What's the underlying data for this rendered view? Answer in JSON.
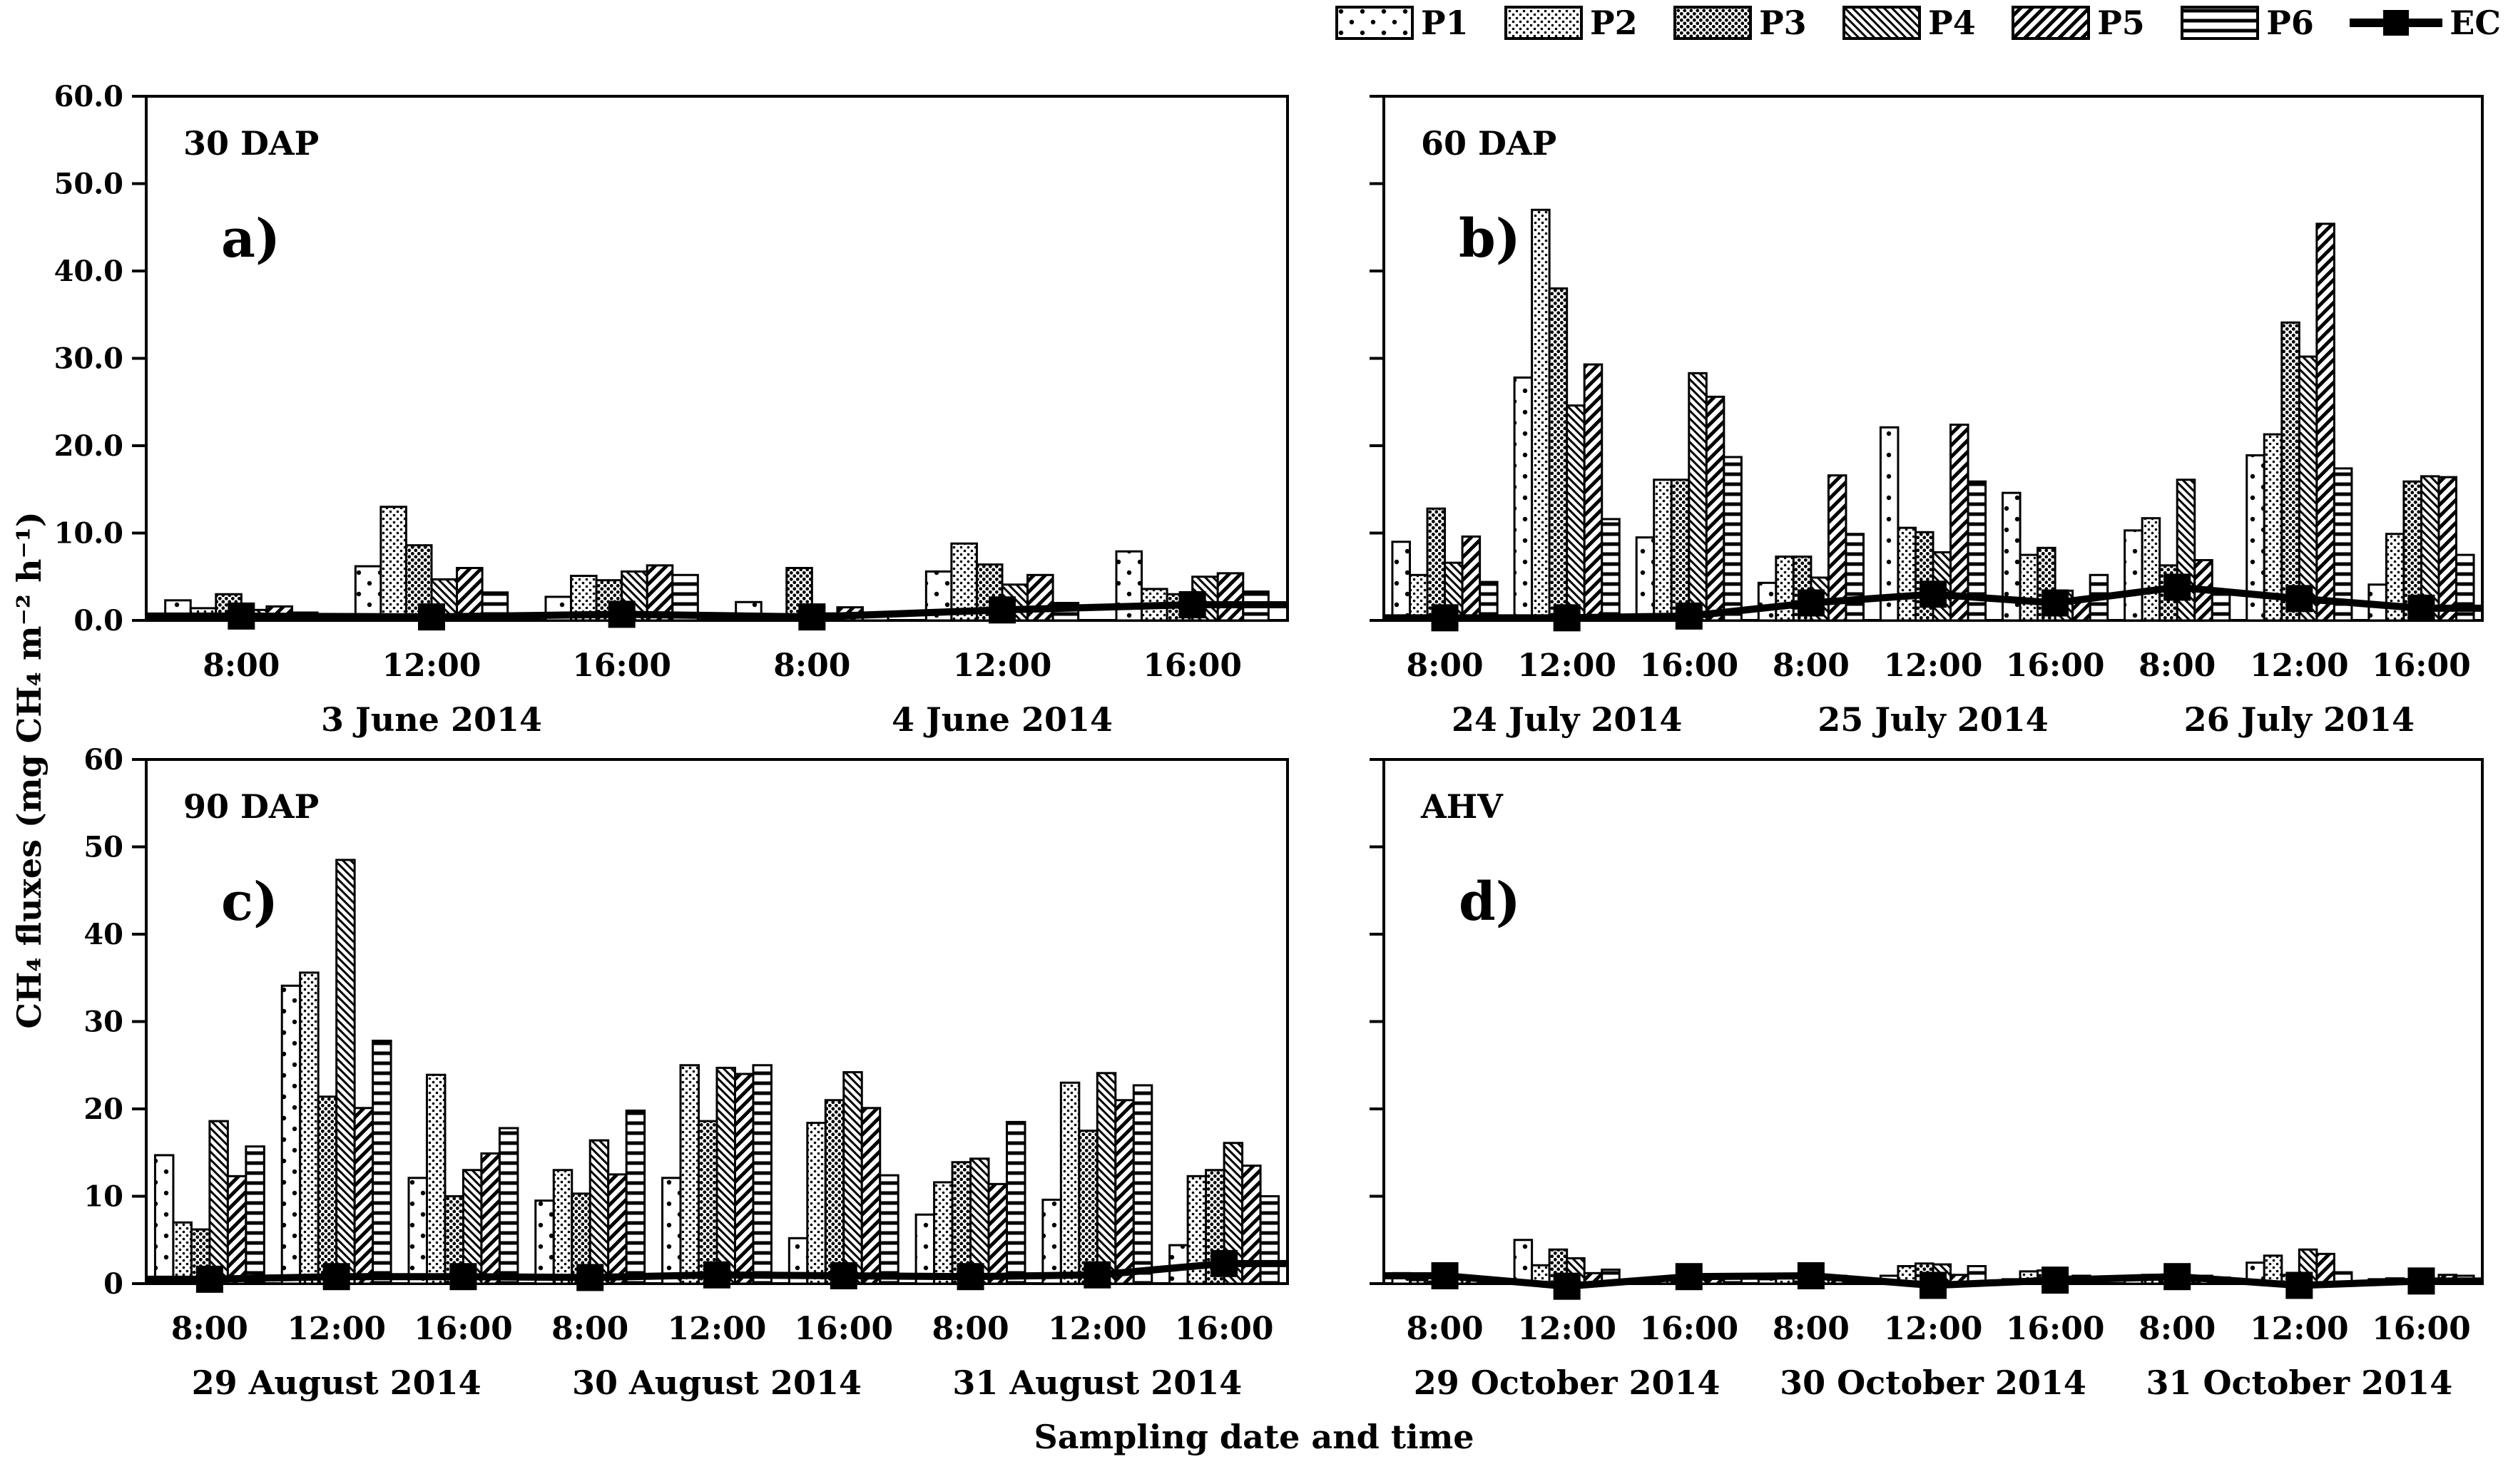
{
  "figure": {
    "y_axis_title": "CH₄ fluxes (mg CH₄ m⁻² h⁻¹)",
    "x_axis_title": "Sampling date and time"
  },
  "legend": {
    "items": [
      {
        "label": "P1",
        "pattern": "sparse-dots"
      },
      {
        "label": "P2",
        "pattern": "fine-dots"
      },
      {
        "label": "P3",
        "pattern": "dense-dots"
      },
      {
        "label": "P4",
        "pattern": "diagonal-backslash"
      },
      {
        "label": "P5",
        "pattern": "diagonal-slash"
      },
      {
        "label": "P6",
        "pattern": "horizontal-lines"
      },
      {
        "label": "EC",
        "pattern": "line-with-square-marker"
      }
    ]
  },
  "chart_data": {
    "type": "bar",
    "title": "",
    "ylabel": "CH₄ fluxes (mg CH₄ m⁻² h⁻¹)",
    "xlabel": "Sampling date and time",
    "series_names": [
      "P1",
      "P2",
      "P3",
      "P4",
      "P5",
      "P6"
    ],
    "ec_series_name": "EC",
    "accent_color": "#000000",
    "panels": [
      {
        "id": "a",
        "tag": "30 DAP",
        "letter": "a)",
        "ylim": [
          0,
          60
        ],
        "y_ticks": [
          0,
          10,
          20,
          30,
          40,
          50,
          60
        ],
        "y_tick_labels": [
          "0.0",
          "10.0",
          "20.0",
          "30.0",
          "40.0",
          "50.0",
          "60.0"
        ],
        "dates": [
          "3 June 2014",
          "4 June 2014"
        ],
        "groups": [
          {
            "time": "8:00",
            "date_index": 0,
            "values": [
              2.3,
              1.4,
              3.0,
              1.2,
              1.6,
              0.9
            ],
            "ec": 0.5
          },
          {
            "time": "12:00",
            "date_index": 0,
            "values": [
              6.2,
              13.0,
              8.6,
              4.7,
              6.0,
              3.2
            ],
            "ec": 0.4
          },
          {
            "time": "16:00",
            "date_index": 0,
            "values": [
              2.7,
              5.1,
              4.6,
              5.6,
              6.3,
              5.2
            ],
            "ec": 0.7
          },
          {
            "time": "8:00",
            "date_index": 1,
            "values": [
              2.1,
              0.6,
              6.0,
              0.8,
              1.5,
              0.9
            ],
            "ec": 0.4
          },
          {
            "time": "12:00",
            "date_index": 1,
            "values": [
              5.6,
              8.8,
              6.4,
              4.1,
              5.2,
              2.0
            ],
            "ec": 1.2
          },
          {
            "time": "16:00",
            "date_index": 1,
            "values": [
              7.9,
              3.6,
              3.0,
              5.0,
              5.4,
              3.3
            ],
            "ec": 1.8
          }
        ]
      },
      {
        "id": "b",
        "tag": "60 DAP",
        "letter": "b)",
        "ylim": [
          0,
          60
        ],
        "y_ticks": [
          0,
          10,
          20,
          30,
          40,
          50,
          60
        ],
        "y_tick_labels": [],
        "dates": [
          "24 July 2014",
          "25 July 2014",
          "26 July 2014"
        ],
        "groups": [
          {
            "time": "8:00",
            "date_index": 0,
            "values": [
              9.0,
              5.2,
              12.8,
              6.6,
              9.6,
              4.4
            ],
            "ec": 0.3
          },
          {
            "time": "12:00",
            "date_index": 0,
            "values": [
              27.8,
              47.0,
              38.0,
              24.6,
              29.3,
              11.6
            ],
            "ec": 0.3
          },
          {
            "time": "16:00",
            "date_index": 0,
            "values": [
              9.5,
              16.1,
              16.1,
              28.3,
              25.6,
              18.7
            ],
            "ec": 0.5
          },
          {
            "time": "8:00",
            "date_index": 1,
            "values": [
              4.3,
              7.3,
              7.3,
              4.9,
              16.6,
              9.9
            ],
            "ec": 2.0
          },
          {
            "time": "12:00",
            "date_index": 1,
            "values": [
              22.1,
              10.6,
              10.1,
              7.8,
              22.4,
              15.9
            ],
            "ec": 3.0
          },
          {
            "time": "16:00",
            "date_index": 1,
            "values": [
              14.6,
              7.5,
              8.3,
              3.4,
              2.4,
              5.2
            ],
            "ec": 2.0
          },
          {
            "time": "8:00",
            "date_index": 2,
            "values": [
              10.3,
              11.7,
              6.3,
              16.1,
              6.9,
              3.4
            ],
            "ec": 3.8
          },
          {
            "time": "12:00",
            "date_index": 2,
            "values": [
              18.9,
              21.3,
              34.1,
              30.2,
              45.4,
              17.4
            ],
            "ec": 2.5
          },
          {
            "time": "16:00",
            "date_index": 2,
            "values": [
              4.1,
              9.9,
              15.9,
              16.5,
              16.4,
              7.5
            ],
            "ec": 1.4
          }
        ]
      },
      {
        "id": "c",
        "tag": "90 DAP",
        "letter": "c)",
        "ylim": [
          0,
          60
        ],
        "y_ticks": [
          0,
          10,
          20,
          30,
          40,
          50,
          60
        ],
        "y_tick_labels": [
          "0",
          "10",
          "20",
          "30",
          "40",
          "50",
          "60"
        ],
        "dates": [
          "29 August 2014",
          "30 August 2014",
          "31 August 2014"
        ],
        "groups": [
          {
            "time": "8:00",
            "date_index": 0,
            "values": [
              14.7,
              7.0,
              6.2,
              18.6,
              12.3,
              15.7
            ],
            "ec": 0.5
          },
          {
            "time": "12:00",
            "date_index": 0,
            "values": [
              34.1,
              35.6,
              21.4,
              48.5,
              20.1,
              27.8
            ],
            "ec": 0.8
          },
          {
            "time": "16:00",
            "date_index": 0,
            "values": [
              12.1,
              23.9,
              10.0,
              13.0,
              14.9,
              17.8
            ],
            "ec": 0.8
          },
          {
            "time": "8:00",
            "date_index": 1,
            "values": [
              9.5,
              13.0,
              10.3,
              16.4,
              12.5,
              19.8
            ],
            "ec": 0.7
          },
          {
            "time": "12:00",
            "date_index": 1,
            "values": [
              12.1,
              25.0,
              18.6,
              24.7,
              24.0,
              25.0
            ],
            "ec": 1.0
          },
          {
            "time": "16:00",
            "date_index": 1,
            "values": [
              5.2,
              18.4,
              21.0,
              24.2,
              20.1,
              12.4
            ],
            "ec": 0.9
          },
          {
            "time": "8:00",
            "date_index": 2,
            "values": [
              7.9,
              11.6,
              13.9,
              14.3,
              11.4,
              18.5
            ],
            "ec": 0.8
          },
          {
            "time": "12:00",
            "date_index": 2,
            "values": [
              9.6,
              23.0,
              17.5,
              24.1,
              21.0,
              22.7
            ],
            "ec": 1.0
          },
          {
            "time": "16:00",
            "date_index": 2,
            "values": [
              4.4,
              12.3,
              13.0,
              16.1,
              13.5,
              10.0
            ],
            "ec": 2.3
          }
        ]
      },
      {
        "id": "d",
        "tag": "AHV",
        "letter": "d)",
        "ylim": [
          0,
          60
        ],
        "y_ticks": [
          0,
          10,
          20,
          30,
          40,
          50,
          60
        ],
        "y_tick_labels": [],
        "dates": [
          "29 October 2014",
          "30 October 2014",
          "31 October 2014"
        ],
        "groups": [
          {
            "time": "8:00",
            "date_index": 0,
            "values": [
              1.2,
              0.4,
              0.7,
              0.6,
              0.7,
              0.6
            ],
            "ec": 0.9
          },
          {
            "time": "12:00",
            "date_index": 0,
            "values": [
              5.0,
              2.1,
              3.9,
              2.9,
              1.2,
              1.6
            ],
            "ec": -0.3
          },
          {
            "time": "16:00",
            "date_index": 0,
            "values": [
              0.4,
              0.5,
              0.6,
              0.5,
              0.8,
              0.6
            ],
            "ec": 0.8
          },
          {
            "time": "8:00",
            "date_index": 1,
            "values": [
              0.5,
              0.6,
              0.8,
              0.6,
              0.9,
              0.7
            ],
            "ec": 0.9
          },
          {
            "time": "12:00",
            "date_index": 1,
            "values": [
              0.9,
              2.0,
              2.3,
              2.2,
              1.0,
              2.0
            ],
            "ec": -0.2
          },
          {
            "time": "16:00",
            "date_index": 1,
            "values": [
              0.5,
              1.4,
              1.5,
              0.8,
              0.9,
              0.6
            ],
            "ec": 0.4
          },
          {
            "time": "8:00",
            "date_index": 2,
            "values": [
              0.8,
              1.0,
              0.9,
              0.8,
              0.9,
              0.7
            ],
            "ec": 0.8
          },
          {
            "time": "12:00",
            "date_index": 2,
            "values": [
              2.4,
              3.2,
              1.0,
              3.9,
              3.4,
              1.3
            ],
            "ec": -0.2
          },
          {
            "time": "16:00",
            "date_index": 2,
            "values": [
              0.5,
              0.6,
              0.4,
              0.5,
              1.0,
              0.9
            ],
            "ec": 0.3
          }
        ]
      }
    ]
  }
}
